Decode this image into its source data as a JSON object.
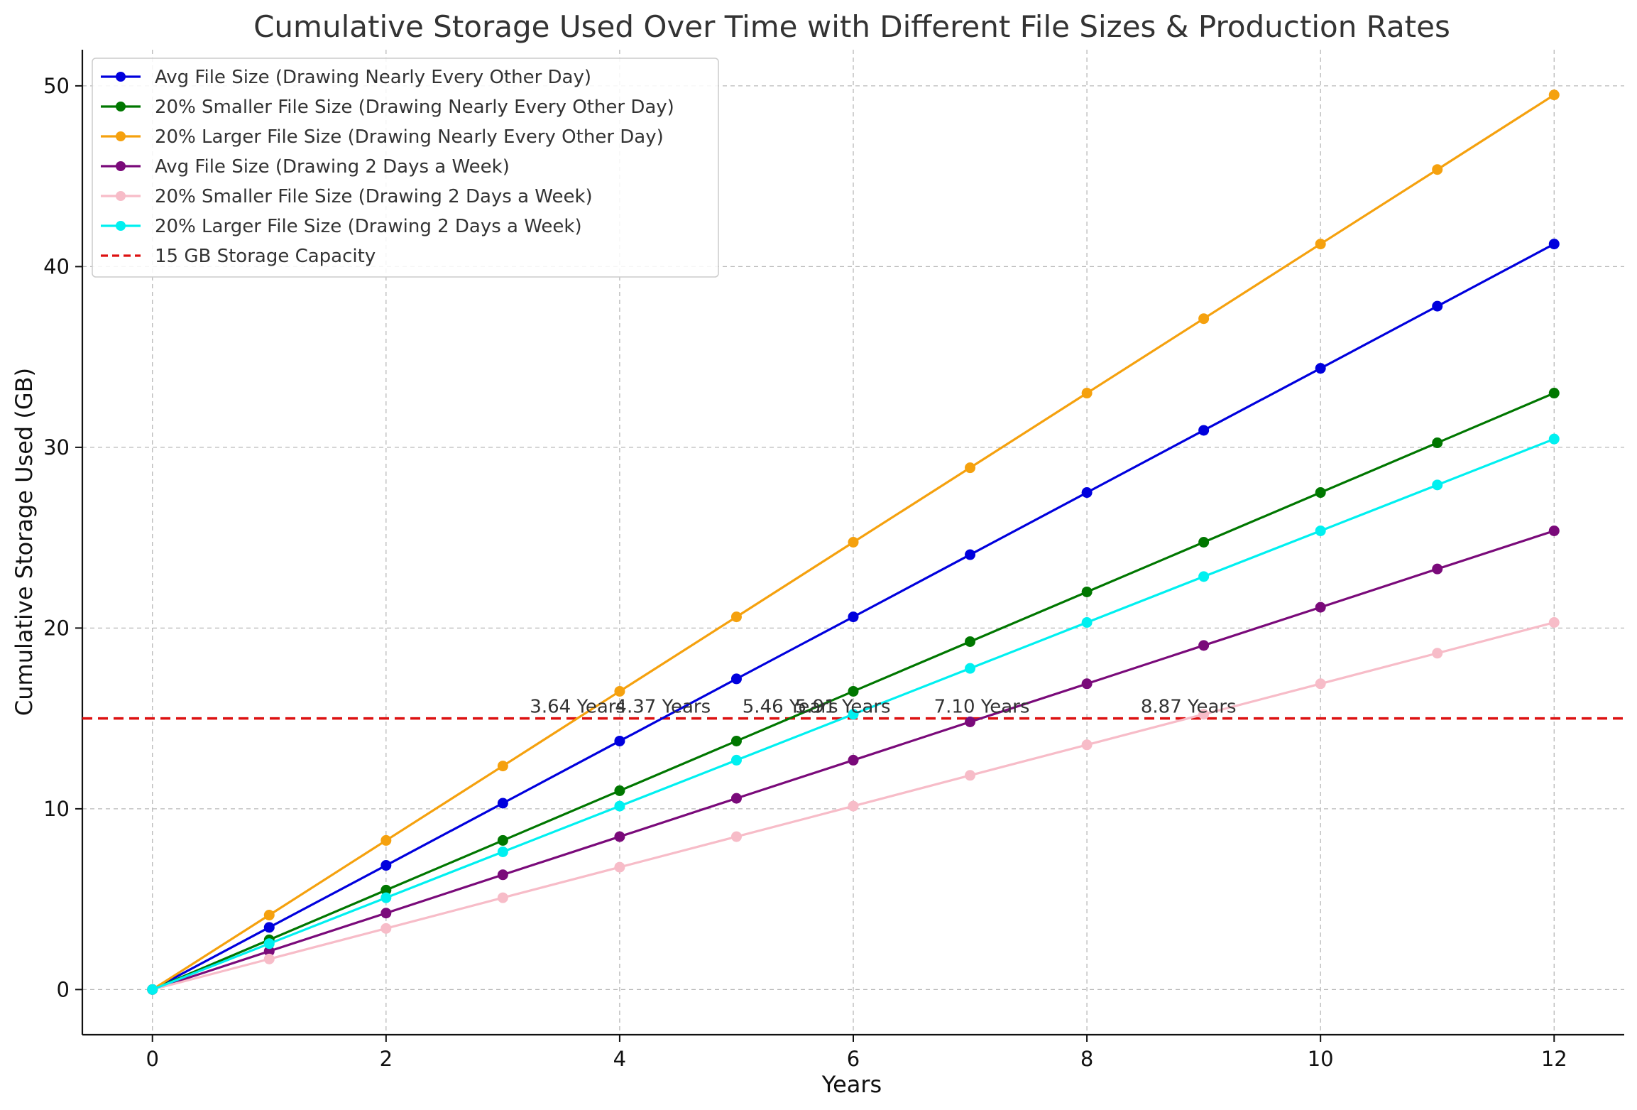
{
  "chart_data": {
    "type": "line",
    "title": "Cumulative Storage Used Over Time with Different File Sizes & Production Rates",
    "xlabel": "Years",
    "ylabel": "Cumulative Storage Used (GB)",
    "xlim": [
      -0.6,
      12.6
    ],
    "ylim": [
      -2.5,
      52
    ],
    "xticks": [
      0,
      2,
      4,
      6,
      8,
      10,
      12
    ],
    "yticks": [
      0,
      10,
      20,
      30,
      40,
      50
    ],
    "grid": true,
    "legend_position": "top-left",
    "x": [
      0,
      1,
      2,
      3,
      4,
      5,
      6,
      7,
      8,
      9,
      10,
      11,
      12
    ],
    "series": [
      {
        "name": "Avg File Size (Drawing Nearly Every Other Day)",
        "color": "#0000dd",
        "values": [
          0,
          3.44,
          6.87,
          10.31,
          13.75,
          17.19,
          20.62,
          24.06,
          27.5,
          30.94,
          34.37,
          37.81,
          41.25
        ]
      },
      {
        "name": "20% Smaller File Size (Drawing Nearly Every Other Day)",
        "color": "#007700",
        "values": [
          0,
          2.75,
          5.5,
          8.25,
          11.0,
          13.75,
          16.5,
          19.25,
          22.0,
          24.75,
          27.5,
          30.25,
          33.0
        ]
      },
      {
        "name": "20% Larger File Size (Drawing Nearly Every Other Day)",
        "color": "#f5a10e",
        "values": [
          0,
          4.12,
          8.25,
          12.37,
          16.5,
          20.62,
          24.75,
          28.87,
          33.0,
          37.12,
          41.25,
          45.37,
          49.5
        ]
      },
      {
        "name": "Avg File Size (Drawing 2 Days a Week)",
        "color": "#7a0a7a",
        "values": [
          0,
          2.12,
          4.23,
          6.35,
          8.46,
          10.58,
          12.69,
          14.81,
          16.92,
          19.04,
          21.15,
          23.27,
          25.38
        ]
      },
      {
        "name": "20% Smaller File Size (Drawing 2 Days a Week)",
        "color": "#f7bcc8",
        "values": [
          0,
          1.69,
          3.38,
          5.08,
          6.77,
          8.46,
          10.15,
          11.85,
          13.54,
          15.23,
          16.92,
          18.61,
          20.31
        ]
      },
      {
        "name": "20% Larger File Size (Drawing 2 Days a Week)",
        "color": "#00f0f0",
        "values": [
          0,
          2.54,
          5.08,
          7.62,
          10.15,
          12.69,
          15.23,
          17.77,
          20.31,
          22.85,
          25.38,
          27.92,
          30.46
        ]
      }
    ],
    "capacity_line": {
      "name": "15 GB Storage Capacity",
      "value": 15,
      "color": "#dd1111"
    },
    "annotations": [
      {
        "text": "3.64 Years",
        "x": 3.64,
        "y": 15
      },
      {
        "text": "4.37 Years",
        "x": 4.37,
        "y": 15
      },
      {
        "text": "5.46 Years",
        "x": 5.46,
        "y": 15
      },
      {
        "text": "5.91 Years",
        "x": 5.91,
        "y": 15
      },
      {
        "text": "7.10 Years",
        "x": 7.1,
        "y": 15
      },
      {
        "text": "8.87 Years",
        "x": 8.87,
        "y": 15
      }
    ]
  }
}
